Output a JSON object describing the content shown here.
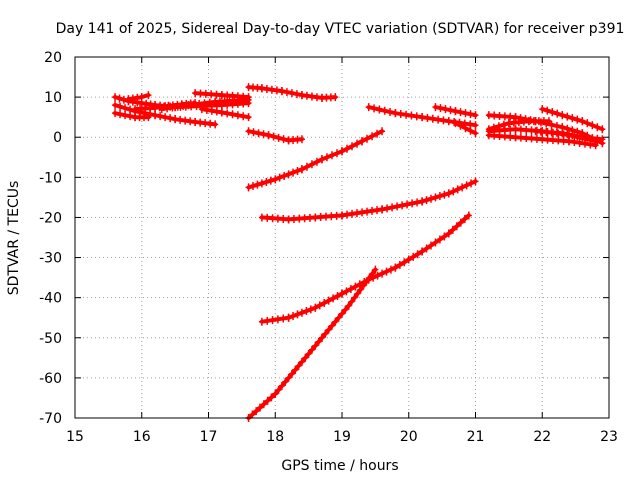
{
  "chart_data": {
    "type": "scatter",
    "title": "Day 141 of 2025, Sidereal Day-to-day VTEC variation (SDTVAR) for receiver p391",
    "xlabel": "GPS time / hours",
    "ylabel": "SDTVAR / TECUs",
    "xlim": [
      15,
      23
    ],
    "ylim": [
      -70,
      20
    ],
    "xticks": [
      "15",
      "16",
      "17",
      "18",
      "19",
      "20",
      "21",
      "22",
      "23"
    ],
    "yticks": [
      "20",
      "10",
      "0",
      "-10",
      "-20",
      "-30",
      "-40",
      "-50",
      "-60",
      "-70"
    ],
    "grid": true,
    "marker": "plus",
    "series_color": "#ff0000",
    "tracks": [
      [
        [
          15.6,
          10.0
        ],
        [
          15.8,
          9.0
        ],
        [
          16.0,
          8.5
        ],
        [
          16.2,
          8.0
        ],
        [
          16.5,
          7.5
        ],
        [
          16.9,
          7.8
        ],
        [
          17.2,
          8.0
        ],
        [
          17.6,
          8.5
        ]
      ],
      [
        [
          15.6,
          8.0
        ],
        [
          15.9,
          6.5
        ],
        [
          16.2,
          5.5
        ],
        [
          16.5,
          4.5
        ],
        [
          16.8,
          3.8
        ],
        [
          17.1,
          3.2
        ]
      ],
      [
        [
          15.6,
          6.0
        ],
        [
          15.9,
          5.0
        ],
        [
          16.1,
          5.0
        ]
      ],
      [
        [
          15.8,
          9.5
        ],
        [
          16.0,
          10.0
        ],
        [
          16.1,
          10.5
        ]
      ],
      [
        [
          15.9,
          7.0
        ],
        [
          16.2,
          7.3
        ],
        [
          16.4,
          7.8
        ],
        [
          16.6,
          8.2
        ],
        [
          16.8,
          8.5
        ]
      ],
      [
        [
          16.3,
          7.0
        ],
        [
          16.7,
          8.0
        ],
        [
          17.1,
          8.8
        ],
        [
          17.6,
          9.3
        ]
      ],
      [
        [
          16.8,
          11.0
        ],
        [
          17.2,
          10.5
        ],
        [
          17.6,
          10.0
        ]
      ],
      [
        [
          16.9,
          7.0
        ],
        [
          17.2,
          6.2
        ],
        [
          17.6,
          5.0
        ]
      ],
      [
        [
          17.6,
          12.5
        ],
        [
          17.8,
          12.2
        ],
        [
          18.1,
          11.5
        ],
        [
          18.4,
          10.5
        ],
        [
          18.7,
          9.8
        ],
        [
          18.9,
          10.0
        ]
      ],
      [
        [
          17.6,
          1.5
        ],
        [
          17.9,
          0.5
        ],
        [
          18.2,
          -0.8
        ],
        [
          18.4,
          -0.5
        ]
      ],
      [
        [
          17.6,
          -12.5
        ],
        [
          18.0,
          -10.5
        ],
        [
          18.4,
          -8.0
        ],
        [
          18.7,
          -5.5
        ],
        [
          19.0,
          -3.5
        ],
        [
          19.3,
          -1.0
        ],
        [
          19.6,
          1.5
        ]
      ],
      [
        [
          17.8,
          -20.0
        ],
        [
          18.2,
          -20.5
        ],
        [
          18.6,
          -20.0
        ],
        [
          19.0,
          -19.5
        ],
        [
          19.6,
          -18.0
        ],
        [
          20.2,
          -16.0
        ],
        [
          20.6,
          -14.0
        ],
        [
          21.0,
          -11.0
        ]
      ],
      [
        [
          17.6,
          -70.0
        ],
        [
          18.0,
          -64.0
        ],
        [
          18.3,
          -58.0
        ],
        [
          18.7,
          -50.0
        ],
        [
          19.1,
          -42.0
        ],
        [
          19.5,
          -33.0
        ]
      ],
      [
        [
          17.8,
          -46.0
        ],
        [
          18.2,
          -45.0
        ],
        [
          18.6,
          -42.5
        ],
        [
          19.0,
          -39.0
        ],
        [
          19.4,
          -35.5
        ],
        [
          19.8,
          -32.5
        ],
        [
          20.2,
          -28.5
        ],
        [
          20.6,
          -24.0
        ],
        [
          20.9,
          -19.5
        ]
      ],
      [
        [
          19.4,
          7.5
        ],
        [
          19.8,
          6.0
        ],
        [
          20.2,
          5.0
        ],
        [
          20.6,
          4.0
        ],
        [
          21.0,
          3.0
        ]
      ],
      [
        [
          20.4,
          7.5
        ],
        [
          20.7,
          6.5
        ],
        [
          21.0,
          5.5
        ]
      ],
      [
        [
          20.7,
          3.5
        ],
        [
          21.0,
          1.0
        ]
      ],
      [
        [
          21.2,
          5.5
        ],
        [
          21.6,
          5.0
        ],
        [
          21.9,
          4.0
        ],
        [
          22.3,
          2.5
        ],
        [
          22.6,
          1.0
        ],
        [
          22.9,
          -1.5
        ]
      ],
      [
        [
          21.2,
          2.0
        ],
        [
          21.5,
          3.5
        ],
        [
          21.8,
          4.0
        ],
        [
          22.1,
          4.0
        ]
      ],
      [
        [
          21.2,
          1.5
        ],
        [
          21.6,
          2.0
        ],
        [
          22.0,
          1.5
        ],
        [
          22.4,
          0.5
        ],
        [
          22.8,
          -1.0
        ]
      ],
      [
        [
          21.2,
          0.5
        ],
        [
          21.6,
          0.0
        ],
        [
          22.0,
          -0.5
        ],
        [
          22.4,
          -1.0
        ],
        [
          22.8,
          -2.0
        ]
      ],
      [
        [
          22.0,
          7.0
        ],
        [
          22.3,
          5.5
        ],
        [
          22.6,
          4.0
        ],
        [
          22.9,
          2.0
        ]
      ],
      [
        [
          21.9,
          1.5
        ],
        [
          22.3,
          1.0
        ],
        [
          22.6,
          0.0
        ],
        [
          22.9,
          -0.5
        ]
      ]
    ]
  }
}
